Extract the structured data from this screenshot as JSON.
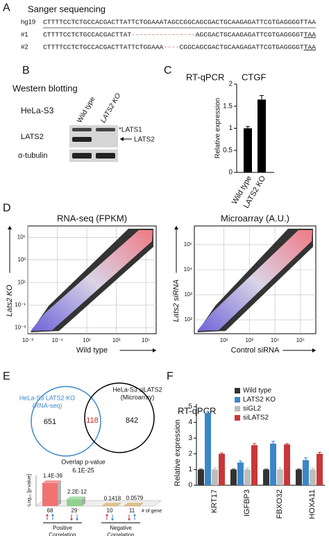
{
  "panel_labels": [
    "A",
    "B",
    "C",
    "D",
    "E",
    "F"
  ],
  "panel_a": {
    "title": "Sanger sequencing",
    "rows": [
      {
        "name": "hg19",
        "prefix": "CTTTTCCTCTGCCACGACTTATTCTGGAAATAGCCGGCAGCGACTGCAAGAGATTCGTGAGGGGTTAA"
      },
      {
        "name": "#1",
        "prefix": "CTTTTCCTCTGCCACGACTTAT",
        "deletion": "----------------",
        "suffix": "AGCGACTGCAAGAGATTCGTGAGGGGT",
        "stop_codon": "TAA"
      },
      {
        "name": "#2",
        "prefix": "CTTTTCCTCTGCCACGACTTATTCTGGAAA",
        "deletion": "----",
        "suffix": "CGGCAGCGACTGCAAGAGATTCGTGAGGGGT",
        "stop_codon": "TAA"
      }
    ]
  },
  "panel_b": {
    "title": "Western blotting",
    "cell_line": "HeLa-S3",
    "lanes": [
      "Wild type",
      "LATS2 KO"
    ],
    "rows": [
      "LATS2",
      "α-tubulin"
    ],
    "bands": [
      "*LATS1",
      "LATS2"
    ]
  },
  "venn": {
    "left_title": "HeLa-S3 LATS2 KO",
    "left_subtitle": "(RNA-seq)",
    "right_title": "HeLa-S3 siLATS2",
    "right_subtitle": "(Microarray)",
    "left_only": 651,
    "overlap": 118,
    "right_only": 842,
    "overlap_label": "Overlap p-value",
    "overlap_p": "6.1E-25"
  },
  "chart_data": [
    {
      "type": "bar",
      "title": "RT-qPCR",
      "subtitle": "CTGF",
      "y_label": "Relative expression",
      "categories": [
        "Wild type",
        "LATS2 KO"
      ],
      "values": [
        1.0,
        1.65
      ],
      "errors": [
        0.04,
        0.09
      ],
      "color": "#000000",
      "ylim": [
        0,
        2
      ],
      "yticks": [
        0,
        0.5,
        1,
        1.5,
        2
      ]
    },
    {
      "type": "scatter",
      "title": "RNA-seq (FPKM)",
      "x_label": "Wild type",
      "y_label": "Lats2 KO",
      "log_scale": true,
      "grid": true,
      "xlim": [
        0.001,
        500000
      ],
      "ylim": [
        0.0003,
        1000000
      ],
      "xticks": [
        {
          "value": 0.001,
          "label": "10⁻³"
        },
        {
          "value": 0.1,
          "label": "10⁻¹"
        },
        {
          "value": 10,
          "label": "10¹"
        },
        {
          "value": 1000,
          "label": "10³"
        },
        {
          "value": 100000,
          "label": "10⁵"
        }
      ],
      "yticks": [
        {
          "value": 0.001,
          "label": "10⁻³"
        },
        {
          "value": 0.1,
          "label": "10⁻¹"
        },
        {
          "value": 10,
          "label": "10¹"
        },
        {
          "value": 1000,
          "label": "10³"
        },
        {
          "value": 100000,
          "label": "10⁵"
        }
      ]
    },
    {
      "type": "scatter",
      "title": "Microarray (A.U.)",
      "x_label": "Control siRNA",
      "y_label": "Lats2 siRNA",
      "log_scale": true,
      "grid": true,
      "xlim": [
        7,
        400000
      ],
      "ylim": [
        28,
        560000
      ],
      "xticks": [
        {
          "value": 100,
          "label": "10²"
        },
        {
          "value": 1000,
          "label": "10³"
        },
        {
          "value": 10000,
          "label": "10⁴"
        },
        {
          "value": 100000,
          "label": "10⁵"
        }
      ],
      "yticks": [
        {
          "value": 100,
          "label": "10²"
        },
        {
          "value": 1000,
          "label": "10³"
        },
        {
          "value": 10000,
          "label": "10⁴"
        },
        {
          "value": 100000,
          "label": "10⁵"
        }
      ]
    },
    {
      "type": "bar3d",
      "y_label": "-Log₁₀ [p-value]",
      "values": [
        1.4e-39,
        2.2e-12,
        0.1418,
        0.0579
      ],
      "value_labels": [
        "1.4E-39",
        "2.2E-12",
        "0.1418",
        "0.0579"
      ],
      "counts": [
        68,
        29,
        10,
        11
      ],
      "count_label": "# of gene",
      "groups": [
        "Positive Correlation",
        "Negative Correlation"
      ],
      "colors": [
        "#f07272",
        "#8fd18f",
        "#d8b062",
        "#d8b062"
      ]
    },
    {
      "type": "grouped_bar",
      "title": "RT-qPCR",
      "y_label": "Relative expression",
      "legend": "upper right",
      "categories": [
        "KRT17",
        "IGFBP3",
        "FBXO32",
        "HOXA11"
      ],
      "series": [
        {
          "name": "Wild type",
          "color": "#333333",
          "values": [
            1,
            1,
            1,
            1
          ],
          "errors": [
            0.03,
            0.03,
            0.03,
            0.03
          ]
        },
        {
          "name": "LATS2 KO",
          "color": "#3b86c8",
          "values": [
            4.6,
            1.45,
            2.65,
            1.6
          ],
          "errors": [
            0.1,
            0.1,
            0.15,
            0.15
          ]
        },
        {
          "name": "siGL2",
          "color": "#bdbdbd",
          "values": [
            1,
            1,
            1,
            1
          ],
          "errors": [
            0.1,
            0.1,
            0.1,
            0.1
          ]
        },
        {
          "name": "siLATS2",
          "color": "#c8373a",
          "values": [
            2.0,
            2.55,
            2.6,
            2.0
          ],
          "errors": [
            0.05,
            0.1,
            0.05,
            0.1
          ]
        }
      ],
      "ylim": [
        0,
        5
      ],
      "yticks": [
        0,
        1,
        2,
        3,
        4,
        5
      ]
    }
  ]
}
